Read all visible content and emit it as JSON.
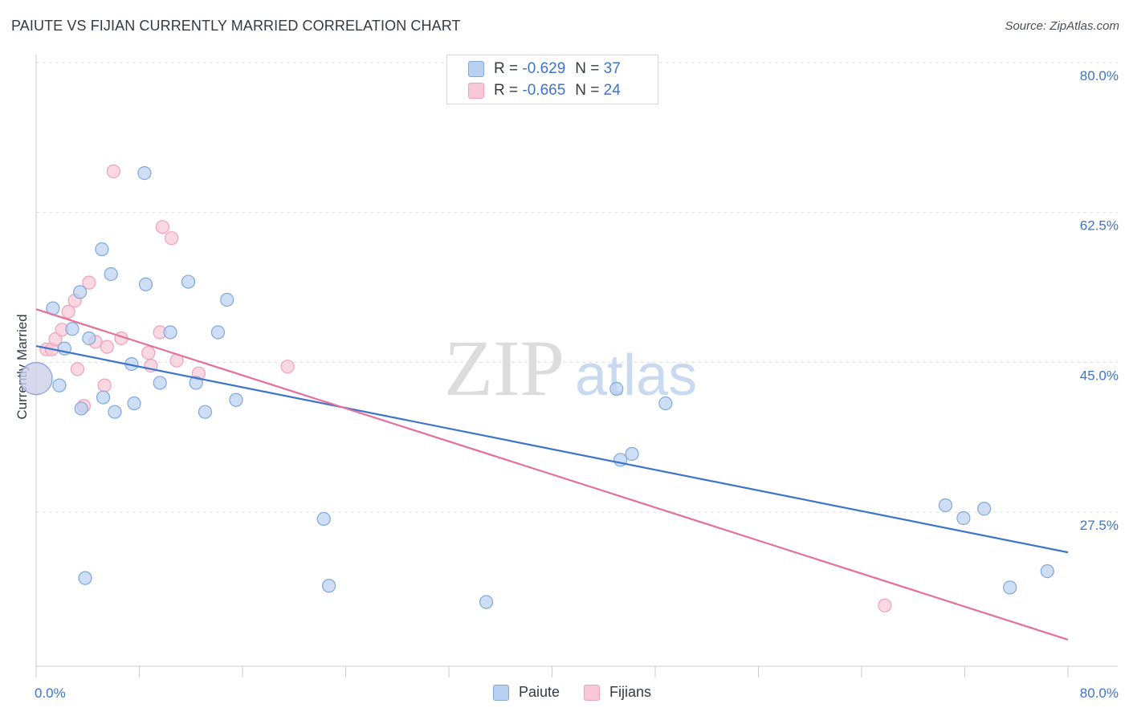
{
  "chart_data": {
    "type": "scatter",
    "title": "PAIUTE VS FIJIAN CURRENTLY MARRIED CORRELATION CHART",
    "source": "Source: ZipAtlas.com",
    "ylabel": "Currently Married",
    "xlabel": "",
    "xlim": [
      0,
      80
    ],
    "ylim": [
      9.5,
      80
    ],
    "x_tick_labels": [
      "0.0%",
      "80.0%"
    ],
    "y_ticks": [
      {
        "value": 80,
        "label": "80.0%"
      },
      {
        "value": 62.5,
        "label": "62.5%"
      },
      {
        "value": 45,
        "label": "45.0%"
      },
      {
        "value": 27.5,
        "label": "27.5%"
      }
    ],
    "watermark": "ZIPatlas",
    "series": [
      {
        "name": "Paiute",
        "color": "#3d74c9",
        "fill": "#b9d1f1",
        "stroke": "#7fa7dd",
        "R": "-0.629",
        "N": "37",
        "trend": {
          "x": [
            0,
            80
          ],
          "y": [
            46.9,
            22.8
          ]
        },
        "points": [
          [
            0,
            43.1
          ],
          [
            1.3,
            51.3
          ],
          [
            1.8,
            42.3
          ],
          [
            2.2,
            46.6
          ],
          [
            2.8,
            48.9
          ],
          [
            3.4,
            53.2
          ],
          [
            3.5,
            39.6
          ],
          [
            3.8,
            19.8
          ],
          [
            4.1,
            47.8
          ],
          [
            5.1,
            58.2
          ],
          [
            5.2,
            40.9
          ],
          [
            5.8,
            55.3
          ],
          [
            6.1,
            39.2
          ],
          [
            7.4,
            44.8
          ],
          [
            7.6,
            40.2
          ],
          [
            8.4,
            67.1
          ],
          [
            8.5,
            54.1
          ],
          [
            9.6,
            42.6
          ],
          [
            10.4,
            48.5
          ],
          [
            11.8,
            54.4
          ],
          [
            12.4,
            42.6
          ],
          [
            13.1,
            39.2
          ],
          [
            14.1,
            48.5
          ],
          [
            14.8,
            52.3
          ],
          [
            15.5,
            40.6
          ],
          [
            22.3,
            26.7
          ],
          [
            22.7,
            18.9
          ],
          [
            34.9,
            17
          ],
          [
            45.0,
            41.9
          ],
          [
            45.3,
            33.6
          ],
          [
            46.2,
            34.3
          ],
          [
            48.8,
            40.2
          ],
          [
            70.5,
            28.3
          ],
          [
            71.9,
            26.8
          ],
          [
            73.5,
            27.9
          ],
          [
            75.5,
            18.7
          ],
          [
            78.4,
            20.6
          ]
        ]
      },
      {
        "name": "Fijians",
        "color": "#e4709a",
        "fill": "#f8c7d6",
        "stroke": "#efa0bb",
        "R": "-0.665",
        "N": "24",
        "trend": {
          "x": [
            0,
            80
          ],
          "y": [
            51.2,
            12.6
          ]
        },
        "points": [
          [
            0,
            43.1
          ],
          [
            0.8,
            46.5
          ],
          [
            1.2,
            46.5
          ],
          [
            1.5,
            47.7
          ],
          [
            2.0,
            48.8
          ],
          [
            2.5,
            50.9
          ],
          [
            3.0,
            52.2
          ],
          [
            3.2,
            44.2
          ],
          [
            3.7,
            39.9
          ],
          [
            4.1,
            54.3
          ],
          [
            4.6,
            47.4
          ],
          [
            5.3,
            42.3
          ],
          [
            5.5,
            46.8
          ],
          [
            6.0,
            67.3
          ],
          [
            6.6,
            47.8
          ],
          [
            8.7,
            46.1
          ],
          [
            8.9,
            44.6
          ],
          [
            9.6,
            48.5
          ],
          [
            9.8,
            60.8
          ],
          [
            10.5,
            59.5
          ],
          [
            10.9,
            45.2
          ],
          [
            12.6,
            43.7
          ],
          [
            19.5,
            44.5
          ],
          [
            65.8,
            16.6
          ]
        ]
      }
    ]
  }
}
